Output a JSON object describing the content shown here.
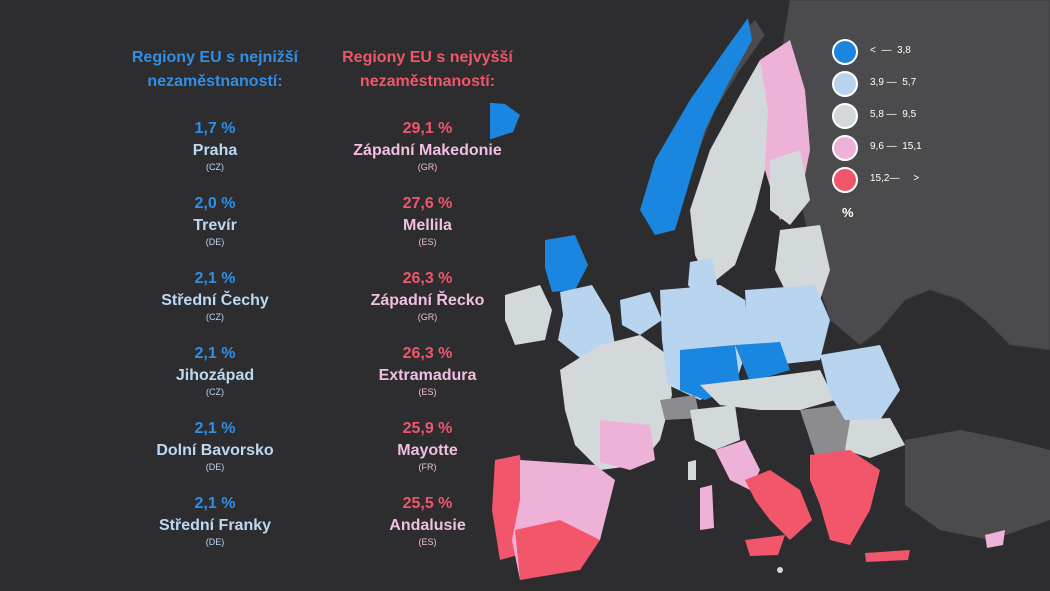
{
  "low_heading": "Regiony EU s nejnižší nezaměstnaností:",
  "high_heading": "Regiony EU s nejvyšší nezaměstnaností:",
  "lowest": [
    {
      "pct": "1,7 %",
      "name": "Praha",
      "code": "(CZ)"
    },
    {
      "pct": "2,0 %",
      "name": "Trevír",
      "code": "(DE)"
    },
    {
      "pct": "2,1 %",
      "name": "Střední Čechy",
      "code": "(CZ)"
    },
    {
      "pct": "2,1 %",
      "name": "Jihozápad",
      "code": "(CZ)"
    },
    {
      "pct": "2,1 %",
      "name": "Dolní Bavorsko",
      "code": "(DE)"
    },
    {
      "pct": "2,1 %",
      "name": "Střední Franky",
      "code": "(DE)"
    }
  ],
  "highest": [
    {
      "pct": "29,1 %",
      "name": "Západní Makedonie",
      "code": "(GR)"
    },
    {
      "pct": "27,6 %",
      "name": "Mellila",
      "code": "(ES)"
    },
    {
      "pct": "26,3 %",
      "name": "Západní Řecko",
      "code": "(GR)"
    },
    {
      "pct": "26,3 %",
      "name": "Extramadura",
      "code": "(ES)"
    },
    {
      "pct": "25,9 %",
      "name": "Mayotte",
      "code": "(FR)"
    },
    {
      "pct": "25,5 %",
      "name": "Andalusie",
      "code": "(ES)"
    }
  ],
  "legend": {
    "unit": "%",
    "items": [
      {
        "label": "<  —  3,8",
        "color": "#1a86e0"
      },
      {
        "label": "3,9 —  5,7",
        "color": "#b8d4ee"
      },
      {
        "label": "5,8 —  9,5",
        "color": "#d3d8db"
      },
      {
        "label": "9,6 —  15,1",
        "color": "#eeb1d8"
      },
      {
        "label": "15,2—     >",
        "color": "#f2566b"
      }
    ]
  },
  "colors": {
    "background": "#2d2d2f",
    "non_eu_land": "#4b4b4d",
    "low_accent": "#2f8fe6",
    "high_accent": "#f0566a"
  }
}
